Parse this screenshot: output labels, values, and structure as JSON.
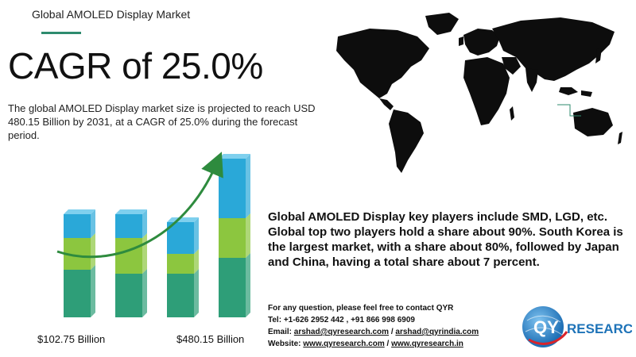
{
  "header": {
    "title": "Global AMOLED Display Market",
    "accent_color": "#2e8b6e"
  },
  "headline": {
    "cagr": "CAGR of 25.0%"
  },
  "description": "The global AMOLED Display market size is projected to reach USD 480.15 Billion by 2031, at a CAGR of 25.0% during the forecast period.",
  "chart_data": {
    "type": "bar",
    "series_colors": [
      "#2e9e78",
      "#8cc63f",
      "#2aa8d8"
    ],
    "arrow_color": "#2e8b3e",
    "labels": {
      "left": "$102.75 Billion",
      "right": "$480.15  Billion"
    }
  },
  "summary": "Global AMOLED Display key players include SMD, LGD, etc. Global top two players hold a share about 90%. South Korea is the largest market, with a share about 80%, followed by Japan and China, having a total share about 7 percent.",
  "contact": {
    "intro": "For any question, please feel free to contact QYR",
    "tel_label": "Tel:",
    "tel": "+1-626 2952 442 , +91 866 998 6909",
    "email_label": "Email:",
    "email_1": "arshad@qyresearch.com",
    "separator": "/",
    "email_2": "arshad@qyrindia.com",
    "website_label": "Website:",
    "website_1": "www.qyresearch.com",
    "website_2": "www.qyresearch.in"
  },
  "logo": {
    "text_qy": "QY",
    "text_rest": "RESEARCH",
    "brand_color": "#1e73b8"
  }
}
